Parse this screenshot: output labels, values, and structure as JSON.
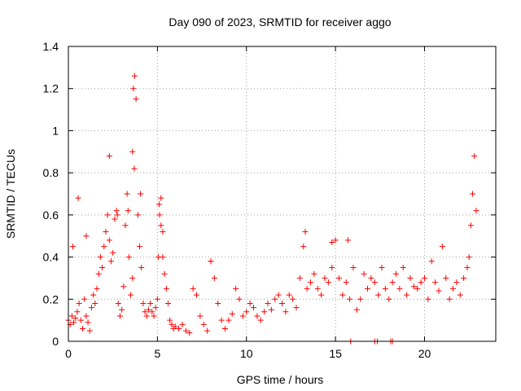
{
  "chart_data": {
    "type": "scatter",
    "title": "Day 090 of 2023, SRMTID for receiver aggo",
    "xlabel": "GPS time / hours",
    "ylabel": "SRMTID / TECUs",
    "xlim": [
      0,
      24
    ],
    "ylim": [
      0,
      1.4
    ],
    "x_ticks": [
      0,
      5,
      10,
      15,
      20
    ],
    "x_tick_labels": [
      "0",
      "5",
      "10",
      "15",
      "20"
    ],
    "y_ticks": [
      0,
      0.2,
      0.4,
      0.6,
      0.8,
      1.0,
      1.2,
      1.4
    ],
    "y_tick_labels": [
      "0",
      "0.2",
      "0.4",
      "0.6",
      "0.8",
      "1",
      "1.2",
      "1.4"
    ],
    "grid": true,
    "marker": "+",
    "color": "#ff0000",
    "series": [
      {
        "name": "SRMTID",
        "x": [
          0.0,
          0.1,
          0.2,
          0.3,
          0.4,
          0.5,
          0.6,
          0.7,
          0.8,
          0.9,
          1.0,
          1.1,
          1.2,
          1.3,
          1.4,
          1.5,
          1.6,
          1.7,
          1.8,
          1.9,
          2.0,
          2.1,
          2.2,
          2.3,
          2.4,
          2.5,
          2.6,
          2.7,
          2.8,
          2.9,
          3.0,
          3.1,
          3.2,
          3.3,
          3.4,
          3.5,
          3.6,
          3.7,
          3.8,
          3.9,
          4.0,
          4.1,
          4.2,
          4.3,
          4.4,
          4.5,
          4.6,
          4.7,
          4.8,
          4.9,
          5.0,
          5.1,
          5.2,
          5.3,
          5.4,
          5.5,
          5.6,
          5.7,
          5.8,
          5.9,
          6.0,
          6.2,
          6.4,
          6.6,
          6.8,
          7.0,
          7.2,
          7.4,
          7.6,
          7.8,
          8.0,
          8.2,
          8.4,
          8.6,
          8.8,
          9.0,
          9.2,
          9.4,
          9.6,
          9.8,
          10.0,
          10.2,
          10.4,
          10.6,
          10.8,
          11.0,
          11.2,
          11.4,
          11.6,
          11.8,
          12.0,
          12.2,
          12.4,
          12.6,
          12.8,
          13.0,
          13.2,
          13.4,
          13.6,
          13.8,
          14.0,
          14.2,
          14.4,
          14.6,
          14.8,
          15.0,
          15.2,
          15.4,
          15.6,
          15.8,
          16.0,
          16.2,
          16.4,
          16.6,
          16.8,
          17.0,
          17.2,
          17.4,
          17.6,
          17.8,
          18.0,
          18.2,
          18.4,
          18.6,
          18.8,
          19.0,
          19.2,
          19.4,
          19.6,
          19.8,
          20.0,
          20.2,
          20.4,
          20.6,
          20.8,
          21.0,
          21.2,
          21.4,
          21.6,
          21.8,
          22.0,
          22.2,
          22.4,
          22.5,
          22.6,
          22.7,
          22.8,
          22.9,
          0.25,
          0.55,
          1.0,
          2.3,
          2.75,
          3.35,
          3.6,
          3.65,
          3.72,
          4.05,
          5.05,
          5.12,
          5.2,
          5.3,
          8.0,
          13.3,
          14.8,
          15.7,
          15.85,
          17.2,
          17.35,
          18.1,
          18.2
        ],
        "y": [
          0.1,
          0.08,
          0.12,
          0.09,
          0.11,
          0.14,
          0.18,
          0.1,
          0.06,
          0.2,
          0.12,
          0.09,
          0.05,
          0.16,
          0.22,
          0.18,
          0.25,
          0.32,
          0.4,
          0.35,
          0.45,
          0.52,
          0.6,
          0.48,
          0.38,
          0.42,
          0.58,
          0.62,
          0.18,
          0.12,
          0.15,
          0.26,
          0.55,
          0.7,
          0.4,
          0.22,
          0.3,
          0.82,
          1.15,
          0.6,
          0.45,
          0.35,
          0.18,
          0.14,
          0.12,
          0.15,
          0.18,
          0.14,
          0.12,
          0.16,
          0.2,
          0.65,
          0.55,
          0.4,
          0.32,
          0.25,
          0.18,
          0.1,
          0.08,
          0.06,
          0.07,
          0.06,
          0.08,
          0.05,
          0.04,
          0.25,
          0.22,
          0.12,
          0.08,
          0.05,
          0.38,
          0.3,
          0.18,
          0.1,
          0.06,
          0.1,
          0.13,
          0.25,
          0.2,
          0.12,
          0.14,
          0.18,
          0.16,
          0.12,
          0.1,
          0.14,
          0.18,
          0.15,
          0.2,
          0.22,
          0.18,
          0.14,
          0.22,
          0.2,
          0.16,
          0.3,
          0.45,
          0.25,
          0.28,
          0.32,
          0.25,
          0.22,
          0.3,
          0.28,
          0.35,
          0.48,
          0.3,
          0.22,
          0.28,
          0.2,
          0.35,
          0.15,
          0.2,
          0.32,
          0.25,
          0.3,
          0.28,
          0.22,
          0.35,
          0.25,
          0.2,
          0.28,
          0.32,
          0.25,
          0.35,
          0.22,
          0.3,
          0.26,
          0.25,
          0.28,
          0.3,
          0.2,
          0.38,
          0.28,
          0.24,
          0.45,
          0.3,
          0.2,
          0.25,
          0.28,
          0.22,
          0.3,
          0.35,
          0.4,
          0.55,
          0.7,
          0.88,
          0.62,
          0.45,
          0.68,
          0.5,
          0.88,
          0.6,
          0.62,
          0.9,
          1.2,
          1.26,
          0.7,
          0.4,
          0.6,
          0.68,
          0.52,
          0.38,
          0.52,
          0.47,
          0.48,
          0.0,
          0.0,
          0.0,
          0.0,
          0.0
        ]
      }
    ]
  }
}
